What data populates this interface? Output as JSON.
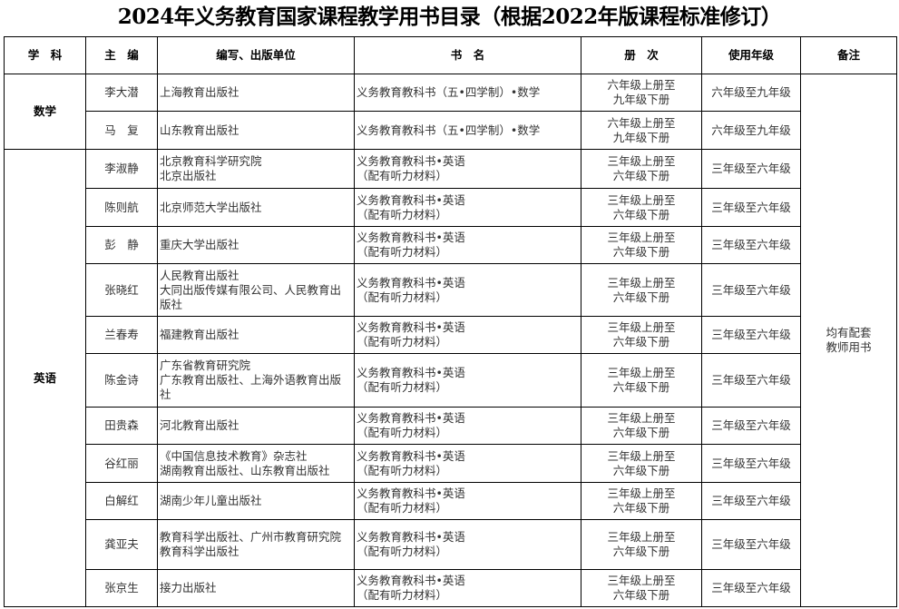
{
  "title": "2024年义务教育国家课程教学用书目录（根据2022年版课程标准修订）",
  "headers": [
    "学　科",
    "主　编",
    "编写、出版单位",
    "书　名",
    "册　次",
    "使用年级",
    "备注"
  ],
  "groups": [
    {
      "subject": "数学",
      "rows": [
        {
          "editor": "李大潜",
          "publisher": [
            "上海教育出版社"
          ],
          "book": [
            "义务教育教科书（五•四学制）•数学"
          ],
          "volume": [
            "六年级上册至",
            "九年级下册"
          ],
          "grade": "六年级至九年级"
        },
        {
          "editor": "马　复",
          "publisher": [
            "山东教育出版社"
          ],
          "book": [
            "义务教育教科书（五•四学制）•数学"
          ],
          "volume": [
            "六年级上册至",
            "九年级下册"
          ],
          "grade": "六年级至九年级"
        }
      ]
    },
    {
      "subject": "英语",
      "rows": [
        {
          "editor": "李淑静",
          "publisher": [
            "北京教育科学研究院",
            "北京出版社"
          ],
          "book": [
            "义务教育教科书•英语",
            "（配有听力材料）"
          ],
          "volume": [
            "三年级上册至",
            "六年级下册"
          ],
          "grade": "三年级至六年级"
        },
        {
          "editor": "陈则航",
          "publisher": [
            "北京师范大学出版社"
          ],
          "book": [
            "义务教育教科书•英语",
            "（配有听力材料）"
          ],
          "volume": [
            "三年级上册至",
            "六年级下册"
          ],
          "grade": "三年级至六年级"
        },
        {
          "editor": "彭　静",
          "publisher": [
            "重庆大学出版社"
          ],
          "book": [
            "义务教育教科书•英语",
            "（配有听力材料）"
          ],
          "volume": [
            "三年级上册至",
            "六年级下册"
          ],
          "grade": "三年级至六年级"
        },
        {
          "editor": "张晓红",
          "publisher": [
            "人民教育出版社",
            "大同出版传媒有限公司、人民教育出版社"
          ],
          "book": [
            "义务教育教科书•英语",
            "（配有听力材料）"
          ],
          "volume": [
            "三年级上册至",
            "六年级下册"
          ],
          "grade": "三年级至六年级"
        },
        {
          "editor": "兰春寿",
          "publisher": [
            "福建教育出版社"
          ],
          "book": [
            "义务教育教科书•英语",
            "（配有听力材料）"
          ],
          "volume": [
            "三年级上册至",
            "六年级下册"
          ],
          "grade": "三年级至六年级"
        },
        {
          "editor": "陈金诗",
          "publisher": [
            "广东省教育研究院",
            "广东教育出版社、上海外语教育出版社"
          ],
          "book": [
            "义务教育教科书•英语",
            "（配有听力材料）"
          ],
          "volume": [
            "三年级上册至",
            "六年级下册"
          ],
          "grade": "三年级至六年级"
        },
        {
          "editor": "田贵森",
          "publisher": [
            "河北教育出版社"
          ],
          "book": [
            "义务教育教科书•英语",
            "（配有听力材料）"
          ],
          "volume": [
            "三年级上册至",
            "六年级下册"
          ],
          "grade": "三年级至六年级"
        },
        {
          "editor": "谷红丽",
          "publisher": [
            "《中国信息技术教育》杂志社",
            "湖南教育出版社、山东教育出版社"
          ],
          "book": [
            "义务教育教科书•英语",
            "（配有听力材料）"
          ],
          "volume": [
            "三年级上册至",
            "六年级下册"
          ],
          "grade": "三年级至六年级"
        },
        {
          "editor": "白解红",
          "publisher": [
            "湖南少年儿童出版社"
          ],
          "book": [
            "义务教育教科书•英语",
            "（配有听力材料）"
          ],
          "volume": [
            "三年级上册至",
            "六年级下册"
          ],
          "grade": "三年级至六年级"
        },
        {
          "editor": "龚亚夫",
          "publisher": [
            "教育科学出版社、广州市教育研究院",
            "教育科学出版社"
          ],
          "book": [
            "义务教育教科书•英语",
            "（配有听力材料）"
          ],
          "volume": [
            "三年级上册至",
            "六年级下册"
          ],
          "grade": "三年级至六年级"
        },
        {
          "editor": "张京生",
          "publisher": [
            "接力出版社"
          ],
          "book": [
            "义务教育教科书•英语",
            "（配有听力材料）"
          ],
          "volume": [
            "三年级上册至",
            "六年级下册"
          ],
          "grade": "三年级至六年级"
        }
      ]
    }
  ],
  "remark": [
    "均有配套",
    "教师用书"
  ]
}
